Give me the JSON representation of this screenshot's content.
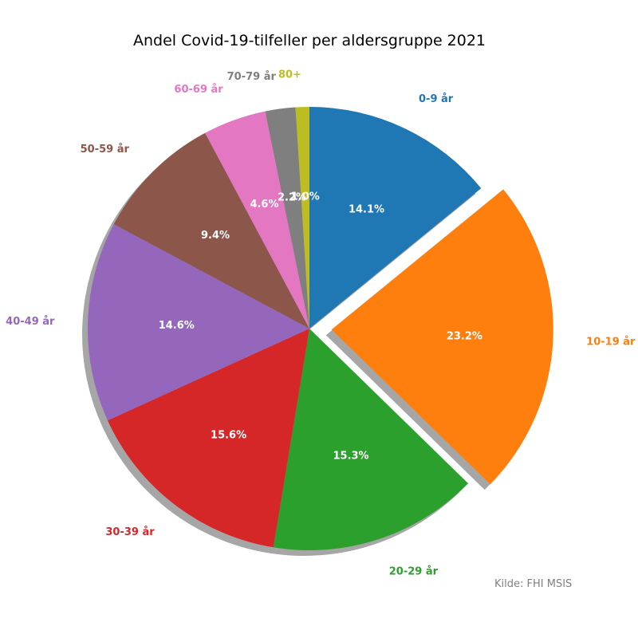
{
  "chart_data": {
    "type": "pie",
    "title": "Andel Covid-19-tilfeller per aldersgruppe 2021",
    "source": "Kilde: FHI MSIS",
    "categories": [
      "0-9 år",
      "10-19 år",
      "20-29 år",
      "30-39 år",
      "40-49 år",
      "50-59 år",
      "60-69 år",
      "70-79 år",
      "80+"
    ],
    "values": [
      14.1,
      23.2,
      15.3,
      15.6,
      14.6,
      9.4,
      4.6,
      2.2,
      1.0
    ],
    "value_labels": [
      "14.1%",
      "23.2%",
      "15.3%",
      "15.6%",
      "14.6%",
      "9.4%",
      "4.6%",
      "2.2%",
      "1.0%"
    ],
    "colors": [
      "#1f77b4",
      "#ff7f0e",
      "#2ca02c",
      "#d62728",
      "#9467bd",
      "#8c564b",
      "#e377c2",
      "#7f7f7f",
      "#bcbd22"
    ],
    "exploded_slice": "10-19 år",
    "start_angle_deg": 90,
    "direction": "clockwise",
    "shadow": true
  }
}
